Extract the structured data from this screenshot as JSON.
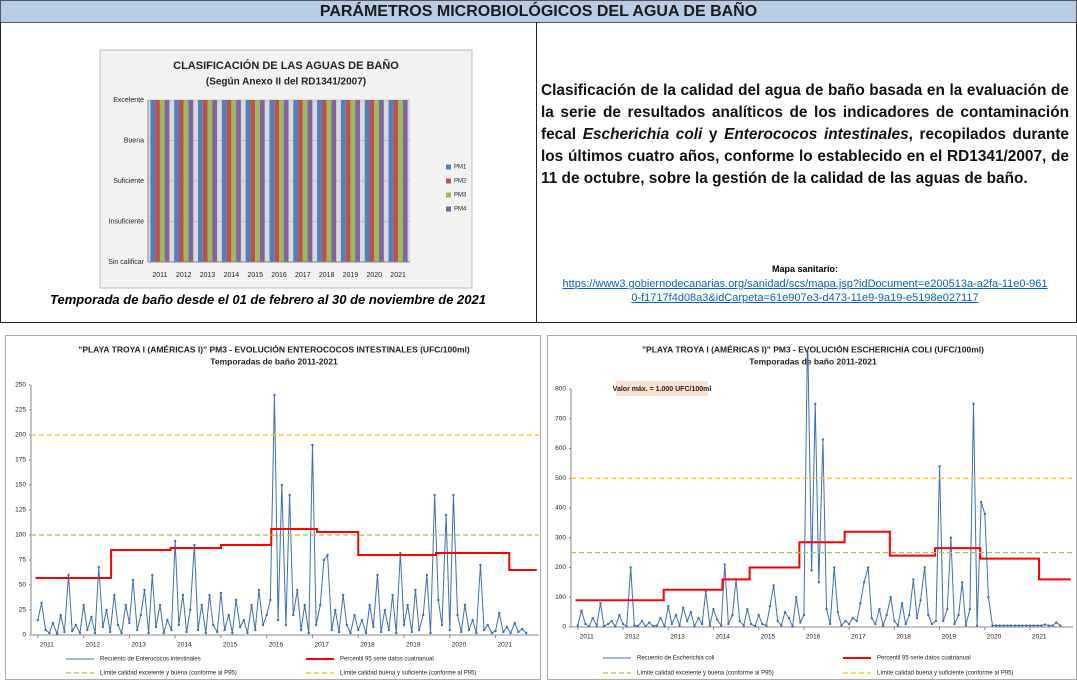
{
  "header": {
    "title": "PARÁMETROS MICROBIOLÓGICOS DEL AGUA DE BAÑO"
  },
  "caption": "Temporada de baño desde el 01 de febrero al 30 de noviembre de 2021",
  "description": [
    "Clasificación de la calidad del agua de baño basada en la evaluación de la serie de resultados analíticos de los indicadores de contaminación fecal ",
    "Escherichia coli",
    " y ",
    "Enterococos intestinales",
    ", recopilados durante los últimos cuatro años, conforme lo establecido en el RD1341/2007, de 11 de octubre, sobre la gestión de la calidad de las aguas de baño."
  ],
  "map": {
    "label": "Mapa sanitario:",
    "url": "https://www3.gobiernodecanarias.org/sanidad/scs/mapa.jsp?idDocument=e200513a-a2fa-11e0-9610-f1717f4d08a3&idCarpeta=61e907e3-d473-11e9-9a19-e5198e027117"
  },
  "chart_data": [
    {
      "type": "bar",
      "title": "CLASIFICACIÓN DE LAS AGUAS DE BAÑO",
      "subtitle": "(Según Anexo II del RD1341/2007)",
      "categories": [
        "2011",
        "2012",
        "2013",
        "2014",
        "2015",
        "2016",
        "2017",
        "2018",
        "2019",
        "2020",
        "2021"
      ],
      "series": [
        {
          "name": "PM1",
          "color": "#4f81bd",
          "values": [
            4,
            4,
            4,
            4,
            4,
            4,
            4,
            4,
            4,
            4,
            4
          ]
        },
        {
          "name": "PM2",
          "color": "#c0504d",
          "values": [
            4,
            4,
            4,
            4,
            4,
            4,
            4,
            4,
            4,
            4,
            4
          ]
        },
        {
          "name": "PM3",
          "color": "#9bbb59",
          "values": [
            4,
            4,
            4,
            4,
            4,
            4,
            4,
            4,
            4,
            4,
            4
          ]
        },
        {
          "name": "PM4",
          "color": "#8064a2",
          "values": [
            4,
            4,
            4,
            4,
            4,
            4,
            4,
            4,
            4,
            4,
            4
          ]
        }
      ],
      "ylim": [
        0,
        4
      ],
      "yticks": [
        {
          "value": 0,
          "label": "Sin calificar"
        },
        {
          "value": 1,
          "label": "Insuficiente"
        },
        {
          "value": 2,
          "label": "Suficiente"
        },
        {
          "value": 3,
          "label": "Buena"
        },
        {
          "value": 4,
          "label": "Excelente"
        }
      ],
      "grid": true,
      "legend": "right"
    },
    {
      "type": "line",
      "title": "\"PLAYA TROYA I (AMÉRICAS I)\" PM3 - EVOLUCIÓN ENTEROCOCOS INTESTINALES (UFC/100ml)",
      "subtitle": "Temporadas de baño 2011-2021",
      "series": [
        {
          "name": "Recuento de Enterococos intestinales",
          "color": "#3c6eb4",
          "markers": true,
          "x": [
            2011.0,
            2011.08,
            2011.17,
            2011.25,
            2011.33,
            2011.42,
            2011.5,
            2011.58,
            2011.67,
            2011.75,
            2011.83,
            2011.92,
            2012.0,
            2012.08,
            2012.17,
            2012.25,
            2012.33,
            2012.42,
            2012.5,
            2012.58,
            2012.67,
            2012.75,
            2012.83,
            2012.92,
            2013.0,
            2013.08,
            2013.17,
            2013.25,
            2013.33,
            2013.42,
            2013.5,
            2013.58,
            2013.67,
            2013.75,
            2013.83,
            2013.92,
            2014.0,
            2014.08,
            2014.17,
            2014.25,
            2014.33,
            2014.42,
            2014.5,
            2014.58,
            2014.67,
            2014.75,
            2014.83,
            2014.92,
            2015.0,
            2015.08,
            2015.17,
            2015.25,
            2015.33,
            2015.42,
            2015.5,
            2015.58,
            2015.67,
            2015.75,
            2015.83,
            2015.92,
            2016.0,
            2016.08,
            2016.17,
            2016.25,
            2016.33,
            2016.42,
            2016.5,
            2016.58,
            2016.67,
            2016.75,
            2016.83,
            2016.92,
            2017.0,
            2017.08,
            2017.17,
            2017.25,
            2017.33,
            2017.42,
            2017.5,
            2017.58,
            2017.67,
            2017.75,
            2017.83,
            2017.92,
            2018.0,
            2018.08,
            2018.17,
            2018.25,
            2018.33,
            2018.42,
            2018.5,
            2018.58,
            2018.67,
            2018.75,
            2018.83,
            2018.92,
            2019.0,
            2019.08,
            2019.17,
            2019.25,
            2019.33,
            2019.42,
            2019.5,
            2019.58,
            2019.67,
            2019.75,
            2019.83,
            2019.92,
            2020.0,
            2020.08,
            2020.17,
            2020.25,
            2020.33,
            2020.42,
            2020.5,
            2020.58,
            2020.67,
            2020.75,
            2020.83,
            2020.92,
            2021.0,
            2021.08,
            2021.17,
            2021.25,
            2021.33,
            2021.42,
            2021.5,
            2021.58,
            2021.67
          ],
          "values": [
            15,
            32,
            5,
            2,
            12,
            1,
            20,
            3,
            60,
            4,
            10,
            2,
            30,
            5,
            18,
            2,
            68,
            8,
            25,
            3,
            40,
            10,
            2,
            30,
            12,
            55,
            5,
            20,
            45,
            2,
            60,
            8,
            30,
            2,
            15,
            5,
            94,
            10,
            40,
            3,
            25,
            90,
            5,
            30,
            2,
            40,
            10,
            3,
            42,
            5,
            20,
            2,
            35,
            8,
            15,
            2,
            30,
            5,
            45,
            10,
            20,
            35,
            240,
            15,
            150,
            10,
            140,
            20,
            45,
            5,
            30,
            2,
            190,
            10,
            30,
            75,
            80,
            5,
            25,
            3,
            40,
            10,
            2,
            20,
            5,
            15,
            2,
            30,
            8,
            60,
            3,
            25,
            5,
            40,
            2,
            82,
            10,
            30,
            3,
            45,
            5,
            20,
            60,
            2,
            140,
            35,
            10,
            120,
            5,
            140,
            20,
            3,
            30,
            5,
            15,
            2,
            70,
            5,
            10,
            2,
            4,
            22,
            3,
            8,
            2,
            12,
            3,
            6,
            2
          ]
        },
        {
          "name": "Percentil 95 serie datos cuatrianual",
          "color": "#ff0000",
          "x": [
            2010.95,
            2012.6,
            2012.6,
            2013.9,
            2013.9,
            2015.0,
            2015.0,
            2016.1,
            2016.1,
            2017.1,
            2017.1,
            2018.0,
            2018.0,
            2019.7,
            2019.7,
            2021.3,
            2021.3,
            2021.9
          ],
          "values": [
            57,
            57,
            85,
            85,
            87,
            87,
            90,
            90,
            106,
            106,
            103,
            103,
            80,
            80,
            82,
            82,
            65,
            65
          ]
        },
        {
          "name": "Límite calidad excelente y buena (conforme al P95)",
          "color": "#92d050",
          "dash": true,
          "x": [
            2010.85,
            2021.95
          ],
          "values": [
            100,
            100
          ]
        },
        {
          "name": "Límite calidad buena y suficiente (conforme al P95)",
          "color": "#ffc000",
          "dash": true,
          "x": [
            2010.85,
            2021.95
          ],
          "values": [
            200,
            200
          ]
        }
      ],
      "xlim": [
        2010.85,
        2021.95
      ],
      "xticks": [
        2011,
        2012,
        2013,
        2014,
        2015,
        2016,
        2017,
        2018,
        2019,
        2020,
        2021
      ],
      "ylim": [
        0,
        250
      ],
      "yticks": [
        0,
        25,
        50,
        75,
        100,
        125,
        150,
        175,
        200,
        225,
        250
      ],
      "legend": "bottom"
    },
    {
      "type": "line",
      "title": "\"PLAYA TROYA I (AMÉRICAS I)\" PM3 - EVOLUCIÓN ESCHERICHIA COLI (UFC/100ml)",
      "subtitle": "Temporadas de baño 2011-2021",
      "annotation": "Valor máx. = 1.000 UFC/100ml",
      "series": [
        {
          "name": "Recuento de Escherichia coli",
          "color": "#3c6eb4",
          "markers": true,
          "x": [
            2011.0,
            2011.08,
            2011.17,
            2011.25,
            2011.33,
            2011.42,
            2011.5,
            2011.58,
            2011.67,
            2011.75,
            2011.83,
            2011.92,
            2012.0,
            2012.08,
            2012.17,
            2012.25,
            2012.33,
            2012.42,
            2012.5,
            2012.58,
            2012.67,
            2012.75,
            2012.83,
            2012.92,
            2013.0,
            2013.08,
            2013.17,
            2013.25,
            2013.33,
            2013.42,
            2013.5,
            2013.58,
            2013.67,
            2013.75,
            2013.83,
            2013.92,
            2014.0,
            2014.08,
            2014.17,
            2014.25,
            2014.33,
            2014.42,
            2014.5,
            2014.58,
            2014.67,
            2014.75,
            2014.83,
            2014.92,
            2015.0,
            2015.08,
            2015.17,
            2015.25,
            2015.33,
            2015.42,
            2015.5,
            2015.58,
            2015.67,
            2015.75,
            2015.83,
            2015.92,
            2016.0,
            2016.08,
            2016.17,
            2016.25,
            2016.33,
            2016.42,
            2016.5,
            2016.58,
            2016.67,
            2016.75,
            2016.83,
            2016.92,
            2017.0,
            2017.08,
            2017.17,
            2017.25,
            2017.33,
            2017.42,
            2017.5,
            2017.58,
            2017.67,
            2017.75,
            2017.83,
            2017.92,
            2018.0,
            2018.08,
            2018.17,
            2018.25,
            2018.33,
            2018.42,
            2018.5,
            2018.58,
            2018.67,
            2018.75,
            2018.83,
            2018.92,
            2019.0,
            2019.08,
            2019.17,
            2019.25,
            2019.33,
            2019.42,
            2019.5,
            2019.58,
            2019.67,
            2019.75,
            2019.83,
            2019.92,
            2020.0,
            2020.08,
            2020.17,
            2020.25,
            2020.33,
            2020.42,
            2020.5,
            2020.58,
            2020.67,
            2020.75,
            2020.83,
            2020.92,
            2021.0,
            2021.08,
            2021.17,
            2021.25,
            2021.33,
            2021.42,
            2021.5,
            2021.58,
            2021.67
          ],
          "values": [
            5,
            55,
            10,
            2,
            30,
            5,
            80,
            3,
            10,
            20,
            2,
            40,
            10,
            2,
            200,
            5,
            3,
            20,
            2,
            15,
            3,
            5,
            30,
            2,
            70,
            10,
            40,
            5,
            65,
            20,
            50,
            3,
            30,
            10,
            120,
            5,
            60,
            25,
            5,
            210,
            10,
            40,
            160,
            20,
            5,
            60,
            10,
            3,
            40,
            10,
            5,
            70,
            140,
            20,
            5,
            50,
            30,
            2,
            100,
            15,
            40,
            1000,
            190,
            750,
            150,
            630,
            60,
            10,
            200,
            50,
            5,
            20,
            10,
            30,
            20,
            80,
            150,
            200,
            30,
            10,
            60,
            5,
            40,
            100,
            20,
            5,
            80,
            10,
            40,
            160,
            30,
            90,
            200,
            40,
            10,
            20,
            540,
            20,
            60,
            300,
            10,
            40,
            150,
            5,
            60,
            750,
            5,
            420,
            380,
            100,
            5,
            5,
            5,
            5,
            5,
            5,
            5,
            5,
            5,
            5,
            5,
            5,
            5,
            5,
            8,
            5,
            5,
            15,
            5
          ]
        },
        {
          "name": "Percentil 95 serie datos cuatrianual",
          "color": "#ff0000",
          "x": [
            2010.95,
            2012.9,
            2012.9,
            2014.2,
            2014.2,
            2014.8,
            2014.8,
            2015.9,
            2015.9,
            2016.9,
            2016.9,
            2017.9,
            2017.9,
            2018.9,
            2018.9,
            2019.9,
            2019.9,
            2021.2,
            2021.2,
            2021.9
          ],
          "values": [
            90,
            90,
            125,
            125,
            160,
            160,
            200,
            200,
            285,
            285,
            320,
            320,
            240,
            240,
            265,
            265,
            230,
            230,
            160,
            160
          ]
        },
        {
          "name": "Límite calidad excelente y buena (conforme al P95)",
          "color": "#92d050",
          "dash": true,
          "x": [
            2010.85,
            2021.95
          ],
          "values": [
            250,
            250
          ]
        },
        {
          "name": "Límite calidad buena y suficiente (conforme al P95)",
          "color": "#ffc000",
          "dash": true,
          "x": [
            2010.85,
            2021.95
          ],
          "values": [
            500,
            500
          ]
        }
      ],
      "xlim": [
        2010.85,
        2021.95
      ],
      "xticks": [
        2011,
        2012,
        2013,
        2014,
        2015,
        2016,
        2017,
        2018,
        2019,
        2020,
        2021
      ],
      "ylim": [
        0,
        800
      ],
      "yticks": [
        0,
        100,
        200,
        300,
        400,
        500,
        600,
        700,
        800
      ],
      "legend": "bottom"
    }
  ]
}
